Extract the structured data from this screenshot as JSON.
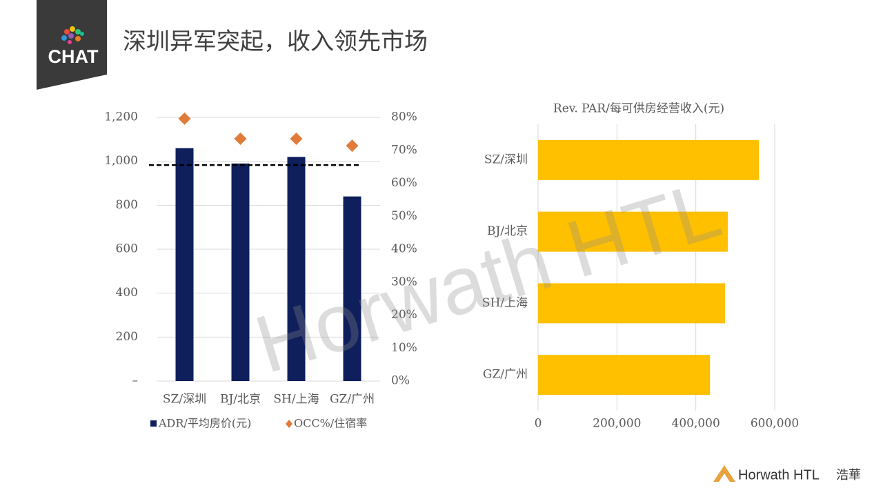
{
  "header": {
    "logo": "CHAT",
    "title": "深圳异军突起，收入领先市场"
  },
  "watermark": "Horwath HTL",
  "footer": {
    "brand": "Horwath HTL",
    "chinese": "浩華"
  },
  "chart_data": [
    {
      "type": "bar",
      "categories": [
        "SZ/深圳",
        "BJ/北京",
        "SH/上海",
        "GZ/广州"
      ],
      "series": [
        {
          "name": "ADR/平均房价(元)",
          "color": "#0f1f5c",
          "marker": "bar",
          "values": [
            1060,
            990,
            1020,
            840
          ]
        },
        {
          "name": "OCC%/住宿率",
          "color": "#e07b39",
          "marker": "diamond",
          "axis": "y2",
          "values": [
            79.6,
            73.5,
            73.5,
            71.4
          ]
        }
      ],
      "ref_line": 983,
      "ylim": [
        0,
        1200
      ],
      "yticks": [
        {
          "value": 0,
          "label": "–"
        },
        200,
        400,
        600,
        800,
        {
          "value": 1000,
          "label": "1,000"
        },
        {
          "value": 1200,
          "label": "1,200"
        }
      ],
      "y2lim": [
        0,
        80
      ],
      "y2ticks": [
        {
          "value": 0,
          "label": "0%"
        },
        {
          "value": 10,
          "label": "10%"
        },
        {
          "value": 20,
          "label": "20%"
        },
        {
          "value": 30,
          "label": "30%"
        },
        {
          "value": 40,
          "label": "40%"
        },
        {
          "value": 50,
          "label": "50%"
        },
        {
          "value": 60,
          "label": "60%"
        },
        {
          "value": 70,
          "label": "70%"
        },
        {
          "value": 80,
          "label": "80%"
        }
      ],
      "grid": true,
      "legend": "bottom"
    },
    {
      "type": "hbar",
      "title": "Rev. PAR/每可供房经营收入(元)",
      "categories": [
        "SZ/深圳",
        "BJ/北京",
        "SH/上海",
        "GZ/广州"
      ],
      "values": [
        560000,
        481000,
        474000,
        436000
      ],
      "color": "#ffc000",
      "xlim": [
        0,
        600000
      ],
      "xticks": [
        0,
        {
          "value": 200000,
          "label": "200,000"
        },
        {
          "value": 400000,
          "label": "400,000"
        },
        {
          "value": 600000,
          "label": "600,000"
        }
      ],
      "grid": true
    }
  ]
}
